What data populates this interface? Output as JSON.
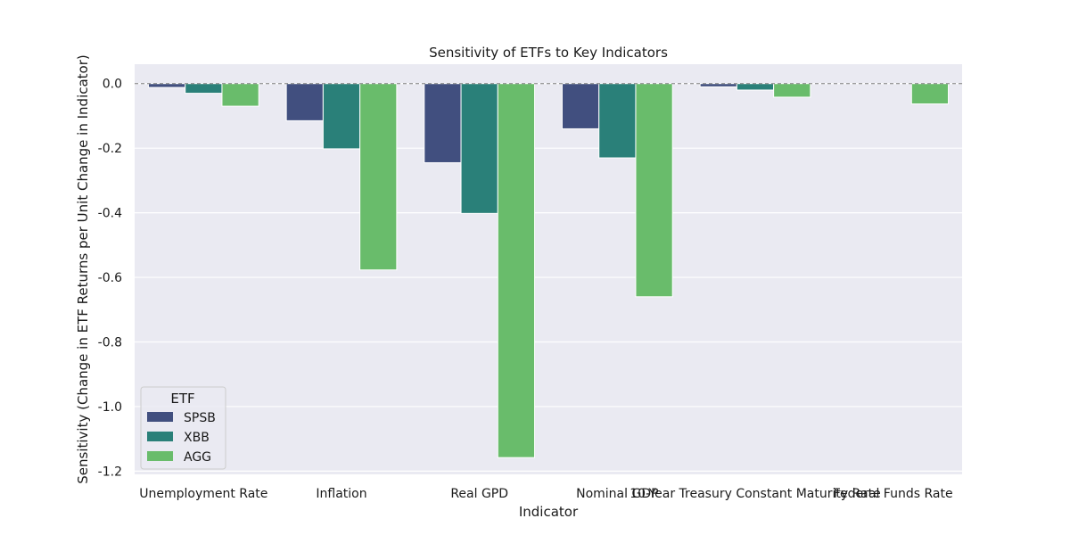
{
  "chart_data": {
    "type": "bar",
    "title": "Sensitivity of ETFs to Key Indicators",
    "xlabel": "Indicator",
    "ylabel": "Sensitivity (Change in ETF Returns per Unit Change in Indicator)",
    "categories": [
      "Unemployment Rate",
      "Inflation",
      "Real GPD",
      "Nominal GDP",
      "10-Year Treasury Constant Maturity Rate",
      "Federal Funds Rate"
    ],
    "series": [
      {
        "name": "SPSB",
        "color": "#414f7f",
        "values": [
          -0.012,
          -0.115,
          -0.245,
          -0.14,
          -0.01,
          0.0
        ]
      },
      {
        "name": "XBB",
        "color": "#2a8079",
        "values": [
          -0.03,
          -0.202,
          -0.402,
          -0.23,
          -0.02,
          0.0
        ]
      },
      {
        "name": "AGG",
        "color": "#69bc6b",
        "values": [
          -0.07,
          -0.577,
          -1.158,
          -0.66,
          -0.042,
          -0.063
        ]
      }
    ],
    "ylim": [
      -1.21,
      0.06
    ],
    "yticks": [
      0.0,
      -0.2,
      -0.4,
      -0.6,
      -0.8,
      -1.0,
      -1.2
    ],
    "grid": true,
    "zero_line": true,
    "legend": {
      "title": "ETF",
      "position": "lower-left"
    },
    "background": "#eaeaf2"
  }
}
